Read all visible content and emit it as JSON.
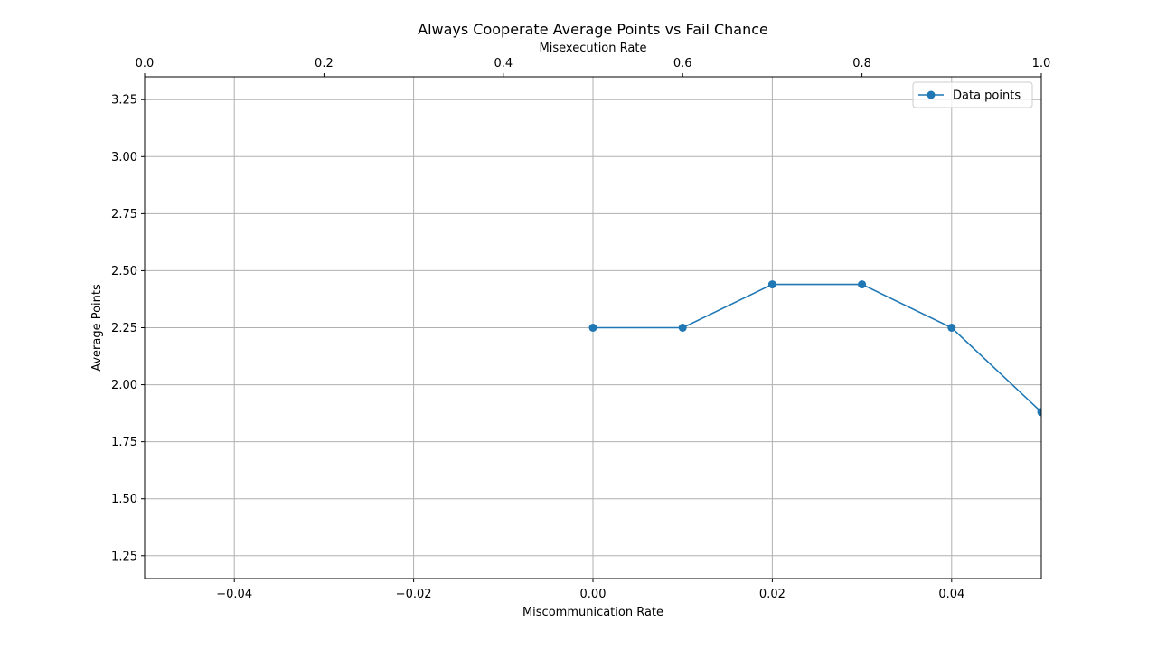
{
  "chart_data": {
    "type": "line",
    "title": "Always Cooperate Average Points vs Fail Chance",
    "xlabel": "Miscommunication Rate",
    "ylabel": "Average Points",
    "top_xlabel": "Misexecution Rate",
    "xlim": [
      -0.05,
      0.05
    ],
    "ylim": [
      1.15,
      3.35
    ],
    "top_xlim": [
      0.0,
      1.0
    ],
    "x_ticks": [
      -0.04,
      -0.02,
      0.0,
      0.02,
      0.04
    ],
    "x_tick_labels": [
      "−0.04",
      "−0.02",
      "0.00",
      "0.02",
      "0.04"
    ],
    "y_ticks": [
      1.25,
      1.5,
      1.75,
      2.0,
      2.25,
      2.5,
      2.75,
      3.0,
      3.25
    ],
    "y_tick_labels": [
      "1.25",
      "1.50",
      "1.75",
      "2.00",
      "2.25",
      "2.50",
      "2.75",
      "3.00",
      "3.25"
    ],
    "top_x_ticks": [
      0.0,
      0.2,
      0.4,
      0.6,
      0.8,
      1.0
    ],
    "top_x_tick_labels": [
      "0.0",
      "0.2",
      "0.4",
      "0.6",
      "0.8",
      "1.0"
    ],
    "grid": true,
    "legend_position": "top-right",
    "series": [
      {
        "name": "Data points",
        "color": "#1f77b4",
        "marker": "circle",
        "x": [
          0.0,
          0.01,
          0.02,
          0.03,
          0.04,
          0.05
        ],
        "y": [
          2.25,
          2.25,
          2.44,
          2.44,
          2.25,
          1.88
        ]
      }
    ]
  }
}
